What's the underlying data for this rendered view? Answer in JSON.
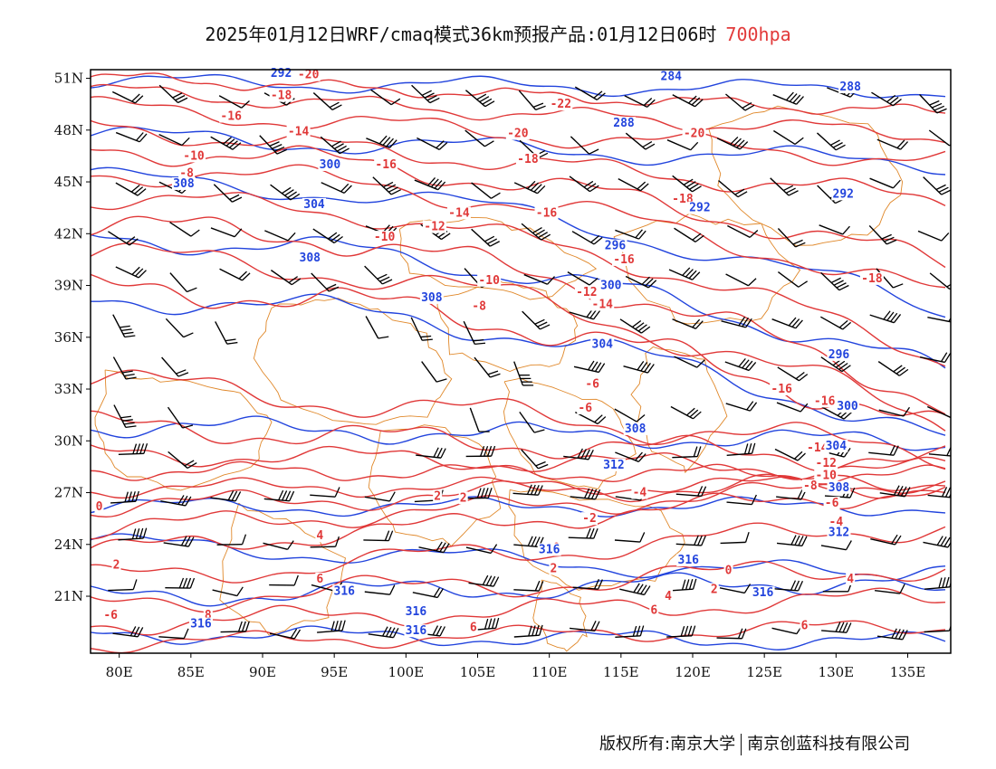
{
  "title": {
    "main": "2025年01月12日WRF/cmaq模式36km预报产品:01月12日06时",
    "level": "700hpa"
  },
  "footer": {
    "left": "版权所有:南京大学",
    "right": "南京创蓝科技有限公司"
  },
  "axes": {
    "lat_labels": [
      "51N",
      "48N",
      "45N",
      "42N",
      "39N",
      "36N",
      "33N",
      "30N",
      "27N",
      "24N",
      "21N"
    ],
    "lon_labels": [
      "80E",
      "85E",
      "90E",
      "95E",
      "100E",
      "105E",
      "110E",
      "115E",
      "120E",
      "125E",
      "130E",
      "135E"
    ]
  },
  "map": {
    "lon_range": [
      78,
      138
    ],
    "lat_range": [
      17.7,
      51.5
    ],
    "colors": {
      "temperature": "#e03838",
      "height": "#2244dd",
      "boundary": "#e0882a",
      "wind": "#000000"
    },
    "temperature_labels": [
      {
        "text": "-20",
        "lon": 93.2,
        "lat": 51.2
      },
      {
        "text": "-18",
        "lon": 91.3,
        "lat": 50.0
      },
      {
        "text": "-16",
        "lon": 87.8,
        "lat": 48.8
      },
      {
        "text": "-14",
        "lon": 92.5,
        "lat": 47.9
      },
      {
        "text": "-10",
        "lon": 85.2,
        "lat": 46.5
      },
      {
        "text": "-8",
        "lon": 84.7,
        "lat": 45.5
      },
      {
        "text": "-16",
        "lon": 98.6,
        "lat": 46.0
      },
      {
        "text": "-14",
        "lon": 103.7,
        "lat": 43.2
      },
      {
        "text": "-12",
        "lon": 102.0,
        "lat": 42.4
      },
      {
        "text": "-10",
        "lon": 98.5,
        "lat": 41.8
      },
      {
        "text": "-22",
        "lon": 110.8,
        "lat": 49.5
      },
      {
        "text": "-20",
        "lon": 107.8,
        "lat": 47.8
      },
      {
        "text": "-18",
        "lon": 108.5,
        "lat": 46.3
      },
      {
        "text": "-16",
        "lon": 109.8,
        "lat": 43.2
      },
      {
        "text": "-20",
        "lon": 120.1,
        "lat": 47.8
      },
      {
        "text": "-18",
        "lon": 119.3,
        "lat": 44.0
      },
      {
        "text": "-16",
        "lon": 115.2,
        "lat": 40.5
      },
      {
        "text": "-14",
        "lon": 113.7,
        "lat": 37.9
      },
      {
        "text": "-12",
        "lon": 112.6,
        "lat": 38.6
      },
      {
        "text": "-10",
        "lon": 105.8,
        "lat": 39.3
      },
      {
        "text": "-8",
        "lon": 105.1,
        "lat": 37.8
      },
      {
        "text": "-18",
        "lon": 132.5,
        "lat": 39.4
      },
      {
        "text": "-16",
        "lon": 126.2,
        "lat": 33.0
      },
      {
        "text": "-16",
        "lon": 129.2,
        "lat": 32.3
      },
      {
        "text": "-6",
        "lon": 113.0,
        "lat": 33.3
      },
      {
        "text": "-6",
        "lon": 112.5,
        "lat": 31.9
      },
      {
        "text": "-14",
        "lon": 128.7,
        "lat": 29.6
      },
      {
        "text": "-12",
        "lon": 129.3,
        "lat": 28.7
      },
      {
        "text": "-10",
        "lon": 129.3,
        "lat": 28.0
      },
      {
        "text": "-8",
        "lon": 128.2,
        "lat": 27.4
      },
      {
        "text": "-6",
        "lon": 129.7,
        "lat": 26.4
      },
      {
        "text": "-4",
        "lon": 130.0,
        "lat": 25.3
      },
      {
        "text": "-4",
        "lon": 116.3,
        "lat": 27.0
      },
      {
        "text": "-2",
        "lon": 112.8,
        "lat": 25.5
      },
      {
        "text": "2",
        "lon": 102.2,
        "lat": 26.8
      },
      {
        "text": "2",
        "lon": 104.0,
        "lat": 26.7
      },
      {
        "text": "0",
        "lon": 78.6,
        "lat": 26.2
      },
      {
        "text": "2",
        "lon": 79.8,
        "lat": 22.8
      },
      {
        "text": "4",
        "lon": 94.0,
        "lat": 24.5
      },
      {
        "text": "6",
        "lon": 94.0,
        "lat": 22.0
      },
      {
        "text": "8",
        "lon": 86.2,
        "lat": 19.9
      },
      {
        "text": "-6",
        "lon": 79.4,
        "lat": 19.9
      },
      {
        "text": "0",
        "lon": 110.5,
        "lat": 23.8
      },
      {
        "text": "2",
        "lon": 110.3,
        "lat": 22.6
      },
      {
        "text": "0",
        "lon": 122.5,
        "lat": 22.5
      },
      {
        "text": "2",
        "lon": 121.5,
        "lat": 21.4
      },
      {
        "text": "4",
        "lon": 118.3,
        "lat": 21.0
      },
      {
        "text": "6",
        "lon": 117.3,
        "lat": 20.2
      },
      {
        "text": "4",
        "lon": 131.0,
        "lat": 22.0
      },
      {
        "text": "6",
        "lon": 127.8,
        "lat": 19.3
      },
      {
        "text": "6",
        "lon": 104.7,
        "lat": 19.2
      }
    ],
    "height_labels": [
      {
        "text": "292",
        "lon": 91.3,
        "lat": 51.3
      },
      {
        "text": "284",
        "lon": 118.5,
        "lat": 51.1
      },
      {
        "text": "288",
        "lon": 131.0,
        "lat": 50.5
      },
      {
        "text": "288",
        "lon": 115.2,
        "lat": 48.4
      },
      {
        "text": "300",
        "lon": 94.7,
        "lat": 46.0
      },
      {
        "text": "308",
        "lon": 84.5,
        "lat": 44.9
      },
      {
        "text": "304",
        "lon": 93.6,
        "lat": 43.7
      },
      {
        "text": "292",
        "lon": 130.5,
        "lat": 44.3
      },
      {
        "text": "292",
        "lon": 120.5,
        "lat": 43.5
      },
      {
        "text": "308",
        "lon": 93.3,
        "lat": 40.6
      },
      {
        "text": "296",
        "lon": 114.6,
        "lat": 41.3
      },
      {
        "text": "300",
        "lon": 114.3,
        "lat": 39.0
      },
      {
        "text": "308",
        "lon": 101.8,
        "lat": 38.3
      },
      {
        "text": "304",
        "lon": 113.7,
        "lat": 35.6
      },
      {
        "text": "296",
        "lon": 130.2,
        "lat": 35.0
      },
      {
        "text": "300",
        "lon": 130.8,
        "lat": 32.0
      },
      {
        "text": "308",
        "lon": 116.0,
        "lat": 30.7
      },
      {
        "text": "304",
        "lon": 130.0,
        "lat": 29.7
      },
      {
        "text": "312",
        "lon": 114.5,
        "lat": 28.6
      },
      {
        "text": "308",
        "lon": 130.2,
        "lat": 27.3
      },
      {
        "text": "312",
        "lon": 130.2,
        "lat": 24.7
      },
      {
        "text": "316",
        "lon": 110.0,
        "lat": 23.7
      },
      {
        "text": "316",
        "lon": 119.7,
        "lat": 23.1
      },
      {
        "text": "316",
        "lon": 95.7,
        "lat": 21.3
      },
      {
        "text": "316",
        "lon": 124.9,
        "lat": 21.2
      },
      {
        "text": "316",
        "lon": 85.7,
        "lat": 19.4
      },
      {
        "text": "316",
        "lon": 100.7,
        "lat": 20.1
      },
      {
        "text": "316",
        "lon": 100.7,
        "lat": 19.0
      }
    ]
  }
}
